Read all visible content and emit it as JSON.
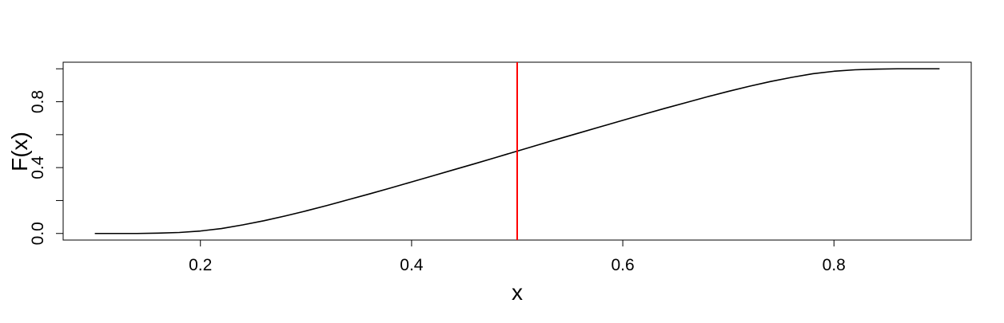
{
  "chart_data": {
    "type": "line",
    "title": "",
    "xlabel": "x",
    "ylabel": "F(x)",
    "xlim": [
      0.07,
      0.93
    ],
    "ylim": [
      -0.04,
      1.04
    ],
    "x_ticks": [
      0.2,
      0.4,
      0.6,
      0.8
    ],
    "x_tick_labels": [
      "0.2",
      "0.4",
      "0.6",
      "0.8"
    ],
    "y_ticks": [
      0.0,
      0.2,
      0.4,
      0.6,
      0.8,
      1.0
    ],
    "y_tick_labels": [
      "0.0",
      "",
      "0.4",
      "",
      "0.8",
      ""
    ],
    "grid": false,
    "series": [
      {
        "color": "#000000",
        "x": [
          0.1,
          0.12,
          0.14,
          0.16,
          0.18,
          0.2,
          0.22,
          0.24,
          0.26,
          0.28,
          0.3,
          0.32,
          0.34,
          0.36,
          0.38,
          0.4,
          0.42,
          0.44,
          0.46,
          0.48,
          0.5,
          0.52,
          0.54,
          0.56,
          0.58,
          0.6,
          0.62,
          0.64,
          0.66,
          0.68,
          0.7,
          0.72,
          0.74,
          0.76,
          0.78,
          0.8,
          0.82,
          0.84,
          0.86,
          0.88,
          0.9
        ],
        "y": [
          0.0,
          0.0,
          0.0,
          0.002,
          0.006,
          0.015,
          0.03,
          0.052,
          0.077,
          0.106,
          0.137,
          0.17,
          0.205,
          0.24,
          0.276,
          0.313,
          0.35,
          0.387,
          0.424,
          0.462,
          0.5,
          0.538,
          0.576,
          0.613,
          0.65,
          0.687,
          0.724,
          0.76,
          0.795,
          0.83,
          0.863,
          0.894,
          0.923,
          0.948,
          0.97,
          0.985,
          0.994,
          0.998,
          1.0,
          1.0,
          1.0
        ]
      }
    ],
    "vlines": [
      {
        "x": 0.5,
        "color": "#ff0000"
      }
    ]
  }
}
